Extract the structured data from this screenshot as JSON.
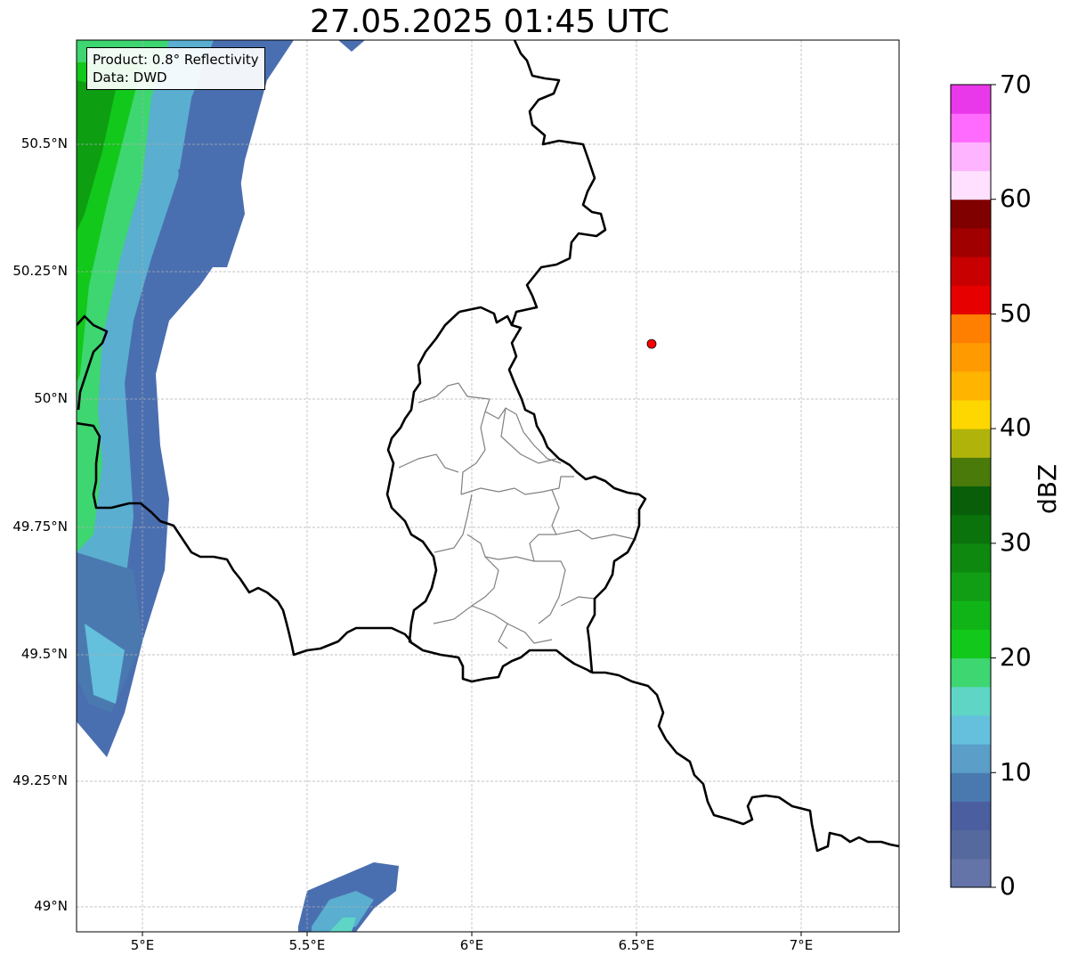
{
  "title": "27.05.2025 01:45 UTC",
  "info_box": {
    "product": "Product: 0.8° Reflectivity",
    "data": "Data: DWD"
  },
  "map": {
    "lat_labels": [
      "50.5°N",
      "50.25°N",
      "50°N",
      "49.75°N",
      "49.5°N",
      "49.25°N",
      "49°N"
    ],
    "lon_labels": [
      "5°E",
      "5.5°E",
      "6°E",
      "6.5°E",
      "7°E"
    ],
    "marker": {
      "lon": 6.55,
      "lat": 50.11,
      "color": "#ff0000"
    }
  },
  "colorbar": {
    "label": "dBZ",
    "ticks": [
      "0",
      "10",
      "20",
      "30",
      "40",
      "50",
      "60",
      "70"
    ],
    "colors": [
      "#6473a8",
      "#56699f",
      "#4a5ea0",
      "#4a79b0",
      "#5b9ec8",
      "#64c0dc",
      "#5fd5c5",
      "#3ed671",
      "#12c81a",
      "#10b417",
      "#129e14",
      "#0e880f",
      "#0b730c",
      "#095e0a",
      "#4a7a0a",
      "#b0b40a",
      "#ffd700",
      "#ffb400",
      "#ff9b00",
      "#ff7f00",
      "#e60000",
      "#c80000",
      "#a00000",
      "#800000",
      "#ffe0ff",
      "#ffb4ff",
      "#ff6bff",
      "#e938e9"
    ]
  }
}
